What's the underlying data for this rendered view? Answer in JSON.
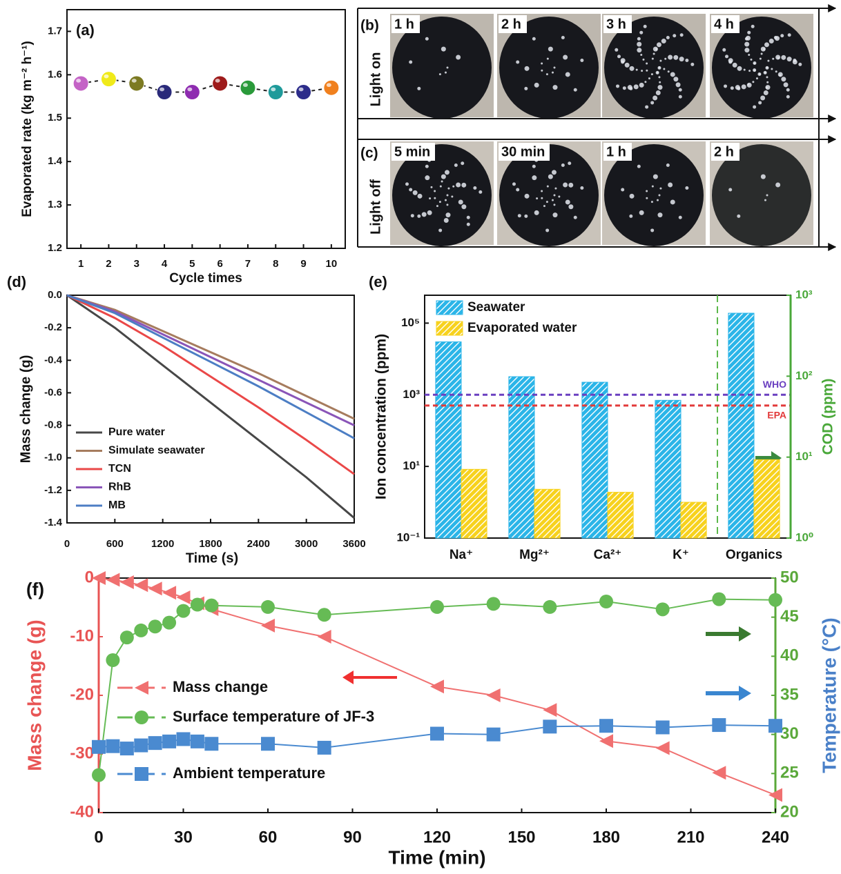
{
  "chart_data": [
    {
      "type": "line",
      "panel_label": "(a)",
      "x_label": "Cycle times",
      "y_label": "Evaporated rate (kg m⁻² h⁻¹)",
      "x": [
        1,
        2,
        3,
        4,
        5,
        6,
        7,
        8,
        9,
        10
      ],
      "values": [
        1.58,
        1.59,
        1.58,
        1.56,
        1.56,
        1.58,
        1.57,
        1.56,
        1.56,
        1.57
      ],
      "colors": [
        "#c463c6",
        "#f0ea1a",
        "#7c7a22",
        "#2a2a7a",
        "#8e2bb0",
        "#9e1b1b",
        "#2a9a3a",
        "#1e9a9a",
        "#2c2c8a",
        "#f0801e"
      ],
      "line_color": "#222222",
      "line_style": "dashed",
      "xlim": [
        0.5,
        10.5
      ],
      "ylim": [
        1.2,
        1.75
      ],
      "xticks": [
        1,
        2,
        3,
        4,
        5,
        6,
        7,
        8,
        9,
        10
      ],
      "yticks": [
        1.2,
        1.3,
        1.4,
        1.5,
        1.6,
        1.7
      ]
    },
    {
      "type": "line",
      "panel_label": "(d)",
      "x_label": "Time (s)",
      "y_label": "Mass change (g)",
      "x": [
        0,
        600,
        1200,
        1800,
        2400,
        3000,
        3600
      ],
      "series": [
        {
          "name": "Pure water",
          "color": "#474747",
          "values": [
            0,
            -0.2,
            -0.43,
            -0.66,
            -0.89,
            -1.12,
            -1.37
          ]
        },
        {
          "name": "Simulate seawater",
          "color": "#a67c5e",
          "values": [
            0,
            -0.09,
            -0.22,
            -0.35,
            -0.48,
            -0.62,
            -0.76
          ]
        },
        {
          "name": "TCN",
          "color": "#ea4848",
          "values": [
            0,
            -0.14,
            -0.31,
            -0.5,
            -0.69,
            -0.89,
            -1.1
          ]
        },
        {
          "name": "RhB",
          "color": "#8a55b8",
          "values": [
            0,
            -0.1,
            -0.24,
            -0.38,
            -0.52,
            -0.66,
            -0.8
          ]
        },
        {
          "name": "MB",
          "color": "#4c7ec4",
          "values": [
            0,
            -0.11,
            -0.26,
            -0.41,
            -0.56,
            -0.72,
            -0.88
          ]
        }
      ],
      "legend": "lower left",
      "xlim": [
        0,
        3600
      ],
      "ylim": [
        -1.4,
        0
      ],
      "xticks": [
        0,
        600,
        1200,
        1800,
        2400,
        3000,
        3600
      ],
      "yticks": [
        {
          "value": 0,
          "label": "0.0"
        },
        -0.2,
        -0.4,
        -0.6,
        -0.8,
        {
          "value": -1,
          "label": "-1.0"
        },
        -1.2,
        -1.4
      ]
    },
    {
      "type": "bar",
      "panel_label": "(e)",
      "y_label": "Ion concentration (ppm)",
      "y2_label": "COD (ppm)",
      "categories": [
        "Na⁺",
        "Mg²⁺",
        "Ca²⁺",
        "K⁺",
        "Organics"
      ],
      "series": [
        {
          "name": "Seawater",
          "color": "#2bb5e8",
          "values": [
            30000,
            3200,
            2240,
            700,
            600
          ]
        },
        {
          "name": "Evaporated water",
          "color": "#f7d21e",
          "values": [
            8.3,
            2.3,
            1.9,
            1.0,
            9.3
          ]
        }
      ],
      "y2_category_index": 4,
      "log_scale": true,
      "legend": "upper left",
      "reference_lines": [
        {
          "label": "WHO",
          "value": 1000,
          "color": "#6a3fc0"
        },
        {
          "label": "EPA",
          "value": 500,
          "color": "#e23a3a"
        }
      ],
      "ylim": [
        0.1,
        600000
      ],
      "y2lim": [
        1,
        1000
      ],
      "yticks": [
        {
          "value": 0.1,
          "label": "10⁻¹"
        },
        {
          "value": 10,
          "label": "10¹"
        },
        {
          "value": 1000,
          "label": "10³"
        },
        {
          "value": 100000,
          "label": "10⁵"
        }
      ],
      "y2ticks": [
        {
          "value": 1,
          "label": "10⁰"
        },
        {
          "value": 10,
          "label": "10¹"
        },
        {
          "value": 100,
          "label": "10²"
        },
        {
          "value": 1000,
          "label": "10³"
        }
      ]
    },
    {
      "type": "line",
      "panel_label": "(f)",
      "x_label": "Time (min)",
      "y_label": "Mass change (g)",
      "y2_label": "Temperature (°C)",
      "x": [
        0,
        5,
        10,
        15,
        20,
        25,
        30,
        35,
        40,
        60,
        80,
        120,
        140,
        160,
        180,
        200,
        220,
        240
      ],
      "series": [
        {
          "name": "Mass change",
          "color": "#f07070",
          "marker": "triangle",
          "values": [
            0,
            -0.3,
            -0.7,
            -1.2,
            -1.8,
            -2.5,
            -3.3,
            -4.3,
            -5.3,
            -8.1,
            -10,
            -18.5,
            -20,
            -22.5,
            -27.8,
            -29,
            -33.2,
            -37
          ]
        },
        {
          "name": "Surface temperature of JF-3",
          "color": "#66bb55",
          "marker": "circle",
          "axis": "y2",
          "values": [
            24.8,
            39.5,
            42.4,
            43.3,
            43.8,
            44.3,
            45.8,
            46.6,
            46.5,
            46.3,
            45.3,
            46.3,
            46.7,
            46.3,
            47,
            46,
            47.3,
            47.2
          ]
        },
        {
          "name": "Ambient temperature",
          "color": "#4a8ad0",
          "marker": "square",
          "axis": "y2",
          "values": [
            28.4,
            28.5,
            28.2,
            28.6,
            28.9,
            29.1,
            29.4,
            29.1,
            28.8,
            28.8,
            28.3,
            30.1,
            30,
            31,
            31.1,
            30.9,
            31.2,
            31.1
          ]
        }
      ],
      "legend": "center left",
      "xlim": [
        0,
        240
      ],
      "ylim": [
        -40,
        0
      ],
      "y2lim": [
        20,
        50
      ],
      "xticks": [
        0,
        30,
        60,
        90,
        120,
        150,
        180,
        210,
        240
      ],
      "yticks": [
        0,
        -10,
        -20,
        -30,
        -40
      ],
      "y2ticks": [
        20,
        25,
        30,
        35,
        40,
        45,
        50
      ]
    }
  ],
  "photo_panels": {
    "rows": [
      {
        "panel_label": "(b)",
        "label": "Light on",
        "times": [
          "1 h",
          "2 h",
          "3 h",
          "4 h"
        ]
      },
      {
        "panel_label": "(c)",
        "label": "Light off",
        "times": [
          "5 min",
          "30 min",
          "1 h",
          "2 h"
        ]
      }
    ]
  }
}
